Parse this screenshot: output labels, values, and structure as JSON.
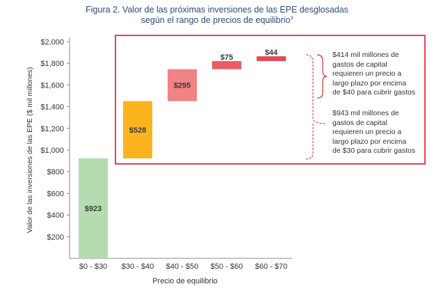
{
  "title": {
    "line1": "Figura 2. Valor de las próximas inversiones de las EPE desglosadas",
    "line2": "según el rango de precios de equilibrio",
    "footnote": "3"
  },
  "chart_data": {
    "type": "bar",
    "subtype": "waterfall",
    "xlabel": "Precio de equilibrio",
    "ylabel": "Valor de las inversiones de las EPE ($ mil millones)",
    "ylim": [
      0,
      2000
    ],
    "yticks": [
      200,
      400,
      600,
      800,
      1000,
      1200,
      1400,
      1600,
      1800,
      2000
    ],
    "ytick_labels": [
      "$200",
      "$400",
      "$600",
      "$800",
      "$1,000",
      "$1,200",
      "$1,400",
      "$1,600",
      "$1,800",
      "$2,000"
    ],
    "grid": false,
    "categories": [
      "$0 - $30",
      "$30 - $40",
      "$40 - $50",
      "$50 - $60",
      "$60 - $70"
    ],
    "values": [
      923,
      528,
      295,
      75,
      44
    ],
    "bar_labels": [
      "$923",
      "$528",
      "$295",
      "$75",
      "$44"
    ],
    "colors": [
      "#b5dcb0",
      "#fbb41e",
      "#f08383",
      "#ea5c65",
      "#e34a57"
    ]
  },
  "highlight_box_color": "#e0434f",
  "bracket_color": "#e0434f",
  "annotations": [
    {
      "text": "$414 mil millones de gastos de capital requieren un precio a largo plazo por encima de $40 para cubrir gastos",
      "lines": [
        "$414 mil millones de",
        "gastos de capital",
        "requieren un precio a",
        "largo plazo por encima",
        "de $40 para cubrir gastos"
      ]
    },
    {
      "text": "$943 mil millones de gastos de capital requieren un precio a largo plazo por encima de $30 para cubrir gastos",
      "lines": [
        "$943 mil millones de",
        "gastos de capital",
        "requieren un precio a",
        "largo plazo por encima",
        "de $30 para cubrir gastos"
      ]
    }
  ]
}
